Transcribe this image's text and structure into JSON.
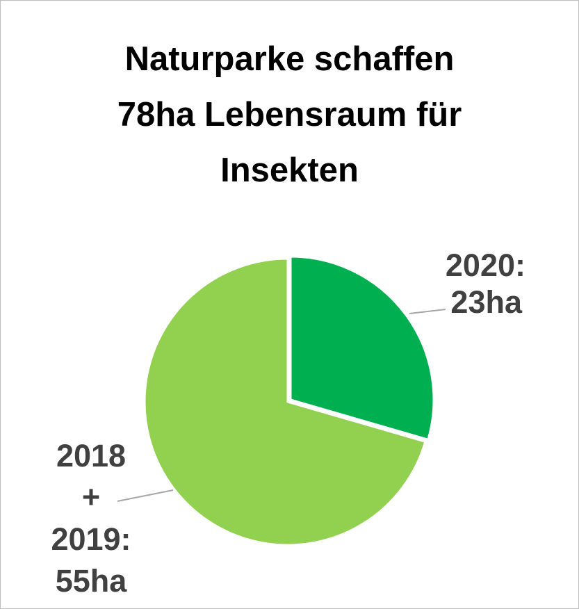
{
  "chart_data": {
    "type": "pie",
    "title": "Naturparke schaffen 78ha Lebensraum für Insekten",
    "title_lines": [
      "Naturparke schaffen",
      "78ha Lebensraum für",
      "Insekten"
    ],
    "slices": [
      {
        "label_lines": [
          "2020:",
          "23ha"
        ],
        "value": 23,
        "color": "#00B050"
      },
      {
        "label_lines": [
          "2018",
          "+",
          "2019:",
          "55ha"
        ],
        "value": 55,
        "color": "#92D050"
      }
    ],
    "unit": "ha",
    "start_angle": "12 o'clock, clockwise",
    "legend": "none",
    "data_labels": "outside with leader lines"
  }
}
